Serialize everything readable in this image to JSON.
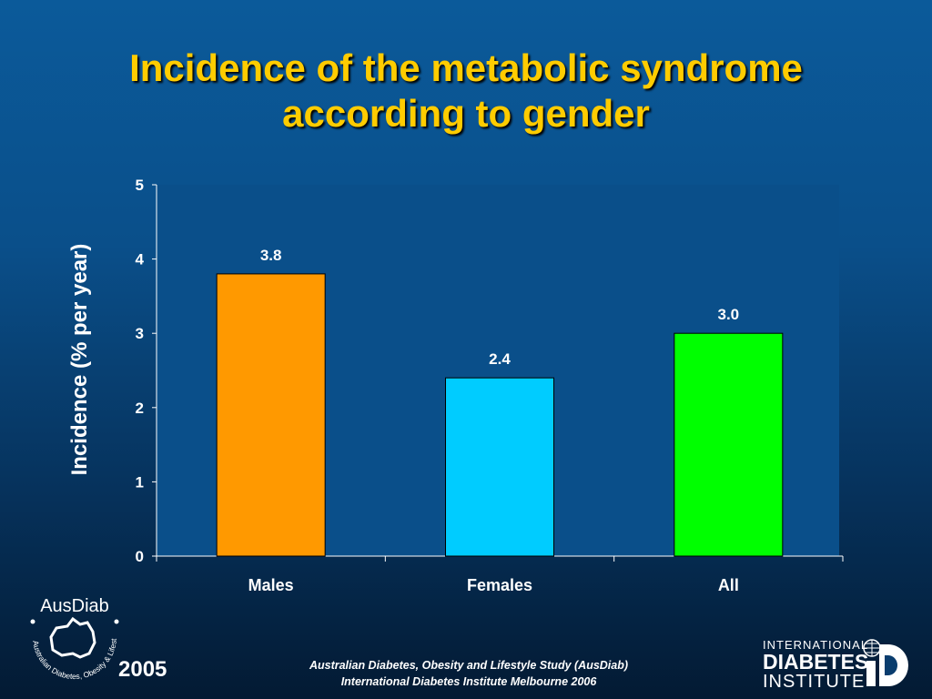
{
  "title": {
    "line1": "Incidence of the metabolic syndrome",
    "line2": "according to gender"
  },
  "chart_data": {
    "type": "bar",
    "categories": [
      "Males",
      "Females",
      "All"
    ],
    "values": [
      3.8,
      2.4,
      3.0
    ],
    "value_labels": [
      "3.8",
      "2.4",
      "3.0"
    ],
    "bar_colors": [
      "#ff9900",
      "#00ccff",
      "#00ff00"
    ],
    "ylabel": "Incidence (% per year)",
    "ylim": [
      0,
      5
    ],
    "yticks": [
      "0",
      "1",
      "2",
      "3",
      "4",
      "5"
    ],
    "plot_background": "#0a4f8a",
    "grid": false,
    "legend": "none"
  },
  "footer": {
    "year": "2005",
    "line1": "Australian Diabetes, Obesity and Lifestyle Study (AusDiab)",
    "line2": "International Diabetes Institute Melbourne 2006"
  },
  "logos": {
    "ausdiab_word": "AusDiab",
    "ausdiab_ring": "Australian Diabetes, Obesity & Lifestyle Study",
    "idi_line1": "INTERNATIONAL",
    "idi_line2": "DIABETES",
    "idi_line3": "INSTITUTE"
  }
}
